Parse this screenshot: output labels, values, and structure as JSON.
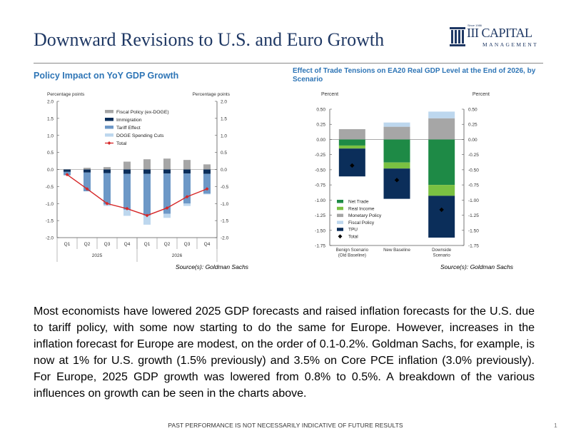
{
  "slide": {
    "title": "Downward Revisions to U.S. and Euro Growth",
    "logo": {
      "since": "Since 1986",
      "name": "III CAPITAL",
      "sub": "MANAGEMENT"
    },
    "body": "Most economists have lowered 2025 GDP forecasts and raised inflation forecasts for the U.S. due to tariff policy, with some now starting to do the same for Europe. However, increases in the inflation forecast for Europe are modest, on the order of 0.1-0.2%. Goldman Sachs, for example, is now at 1% for U.S. growth (1.5% previously) and 3.5% on Core PCE inflation (3.0% previously). For Europe, 2025 GDP growth was lowered from 0.8% to 0.5%. A breakdown of the various influences on growth can be seen in the charts above.",
    "footer": "PAST PERFORMANCE IS NOT NECESSARILY INDICATIVE OF FUTURE RESULTS",
    "page_number": "1"
  },
  "chart_data": [
    {
      "type": "bar",
      "title": "Policy Impact on YoY GDP Growth",
      "ylabel_left": "Percentage points",
      "ylabel_right": "Percentage points",
      "source": "Source(s): Goldman Sachs",
      "categories": [
        "Q1",
        "Q2",
        "Q3",
        "Q4",
        "Q1",
        "Q2",
        "Q3",
        "Q4"
      ],
      "groups": [
        "2025",
        "2026"
      ],
      "ylim": [
        -2.0,
        2.0
      ],
      "yticks": [
        "2.0",
        "1.5",
        "1.0",
        "0.5",
        "0.0",
        "-0.5",
        "-1.0",
        "-1.5",
        "-2.0"
      ],
      "stacked": true,
      "legend_position": "top-center",
      "series": [
        {
          "name": "Fiscal Policy (ex-DOGE)",
          "color": "#a6a6a6",
          "values": [
            0.0,
            0.05,
            0.07,
            0.23,
            0.3,
            0.32,
            0.28,
            0.15
          ]
        },
        {
          "name": "Immigration",
          "color": "#0b2e5a",
          "values": [
            -0.07,
            -0.09,
            -0.11,
            -0.13,
            -0.13,
            -0.12,
            -0.12,
            -0.13
          ]
        },
        {
          "name": "Tariff Effect",
          "color": "#6d98c7",
          "values": [
            -0.1,
            -0.55,
            -0.92,
            -1.05,
            -1.22,
            -1.18,
            -0.88,
            -0.58
          ]
        },
        {
          "name": "DOGE Spending Cuts",
          "color": "#bdd7ee",
          "values": [
            0.0,
            0.0,
            -0.04,
            -0.18,
            -0.27,
            -0.12,
            -0.07,
            -0.02
          ]
        }
      ],
      "line": {
        "name": "Total",
        "color": "#d62728",
        "values": [
          -0.15,
          -0.57,
          -1.0,
          -1.15,
          -1.35,
          -1.13,
          -0.8,
          -0.57
        ]
      }
    },
    {
      "type": "bar",
      "title": "Effect of Trade Tensions on EA20 Real GDP Level at the End of 2026, by Scenario",
      "ylabel_left": "Percent",
      "ylabel_right": "Percent",
      "source": "Source(s): Goldman Sachs",
      "categories": [
        "Benign Scenario (Old Baseline)",
        "New Baseline",
        "Downside Scenario"
      ],
      "category_lines": [
        [
          "Benign Scenario",
          "(Old Baseline)"
        ],
        [
          "New Baseline"
        ],
        [
          "Downside",
          "Scenario"
        ]
      ],
      "ylim": [
        -1.75,
        0.5
      ],
      "yticks": [
        "0.50",
        "0.25",
        "0.00",
        "-0.25",
        "-0.50",
        "-0.75",
        "-1.00",
        "-1.25",
        "-1.50",
        "-1.75"
      ],
      "stacked": true,
      "legend_position": "bottom-left",
      "series": [
        {
          "name": "Net Trade",
          "color": "#1e8a46",
          "values": [
            -0.1,
            -0.38,
            -0.75
          ]
        },
        {
          "name": "Real Income",
          "color": "#7ac142",
          "values": [
            -0.05,
            -0.1,
            -0.18
          ]
        },
        {
          "name": "Monetary Policy",
          "color": "#a6a6a6",
          "values": [
            0.17,
            0.21,
            0.35
          ]
        },
        {
          "name": "Fiscal Policy",
          "color": "#bdd7ee",
          "values": [
            0.0,
            0.07,
            0.11
          ]
        },
        {
          "name": "TPU",
          "color": "#0b2e5a",
          "values": [
            -0.46,
            -0.5,
            -0.69
          ]
        }
      ],
      "markers": {
        "name": "Total",
        "color": "#000000",
        "values": [
          -0.43,
          -0.67,
          -1.16
        ]
      }
    }
  ]
}
